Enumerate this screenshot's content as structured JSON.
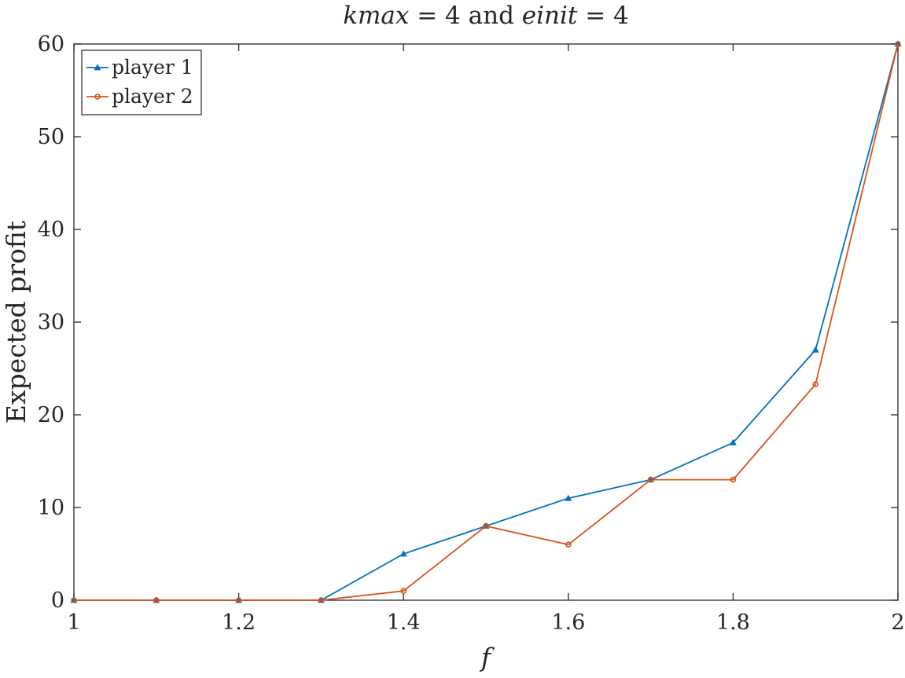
{
  "chart_data": {
    "type": "line",
    "title": {
      "parts": [
        {
          "text": "kmax",
          "italic": true
        },
        {
          "text": " = 4 and ",
          "italic": false
        },
        {
          "text": "einit",
          "italic": true
        },
        {
          "text": " = 4",
          "italic": false
        }
      ]
    },
    "xlabel": "f",
    "ylabel": "Expected profit",
    "xlim": [
      1,
      2
    ],
    "ylim": [
      0,
      60
    ],
    "xticks": [
      1,
      1.2,
      1.4,
      1.6,
      1.8,
      2
    ],
    "xtick_labels": [
      "1",
      "1.2",
      "1.4",
      "1.6",
      "1.8",
      "2"
    ],
    "yticks": [
      0,
      10,
      20,
      30,
      40,
      50,
      60
    ],
    "ytick_labels": [
      "0",
      "10",
      "20",
      "30",
      "40",
      "50",
      "60"
    ],
    "grid": false,
    "legend_position": "top-left",
    "x": [
      1.0,
      1.1,
      1.2,
      1.3,
      1.4,
      1.5,
      1.6,
      1.7,
      1.8,
      1.9,
      2.0
    ],
    "series": [
      {
        "name": "player 1",
        "color": "#0072BD",
        "marker": "triangle",
        "values": [
          0,
          0,
          0,
          0,
          5,
          8,
          11,
          13,
          17,
          27,
          60
        ]
      },
      {
        "name": "player 2",
        "color": "#D95319",
        "marker": "circle",
        "values": [
          0,
          0,
          0,
          0,
          1,
          8,
          6,
          13,
          13,
          23.3,
          60
        ]
      }
    ]
  }
}
